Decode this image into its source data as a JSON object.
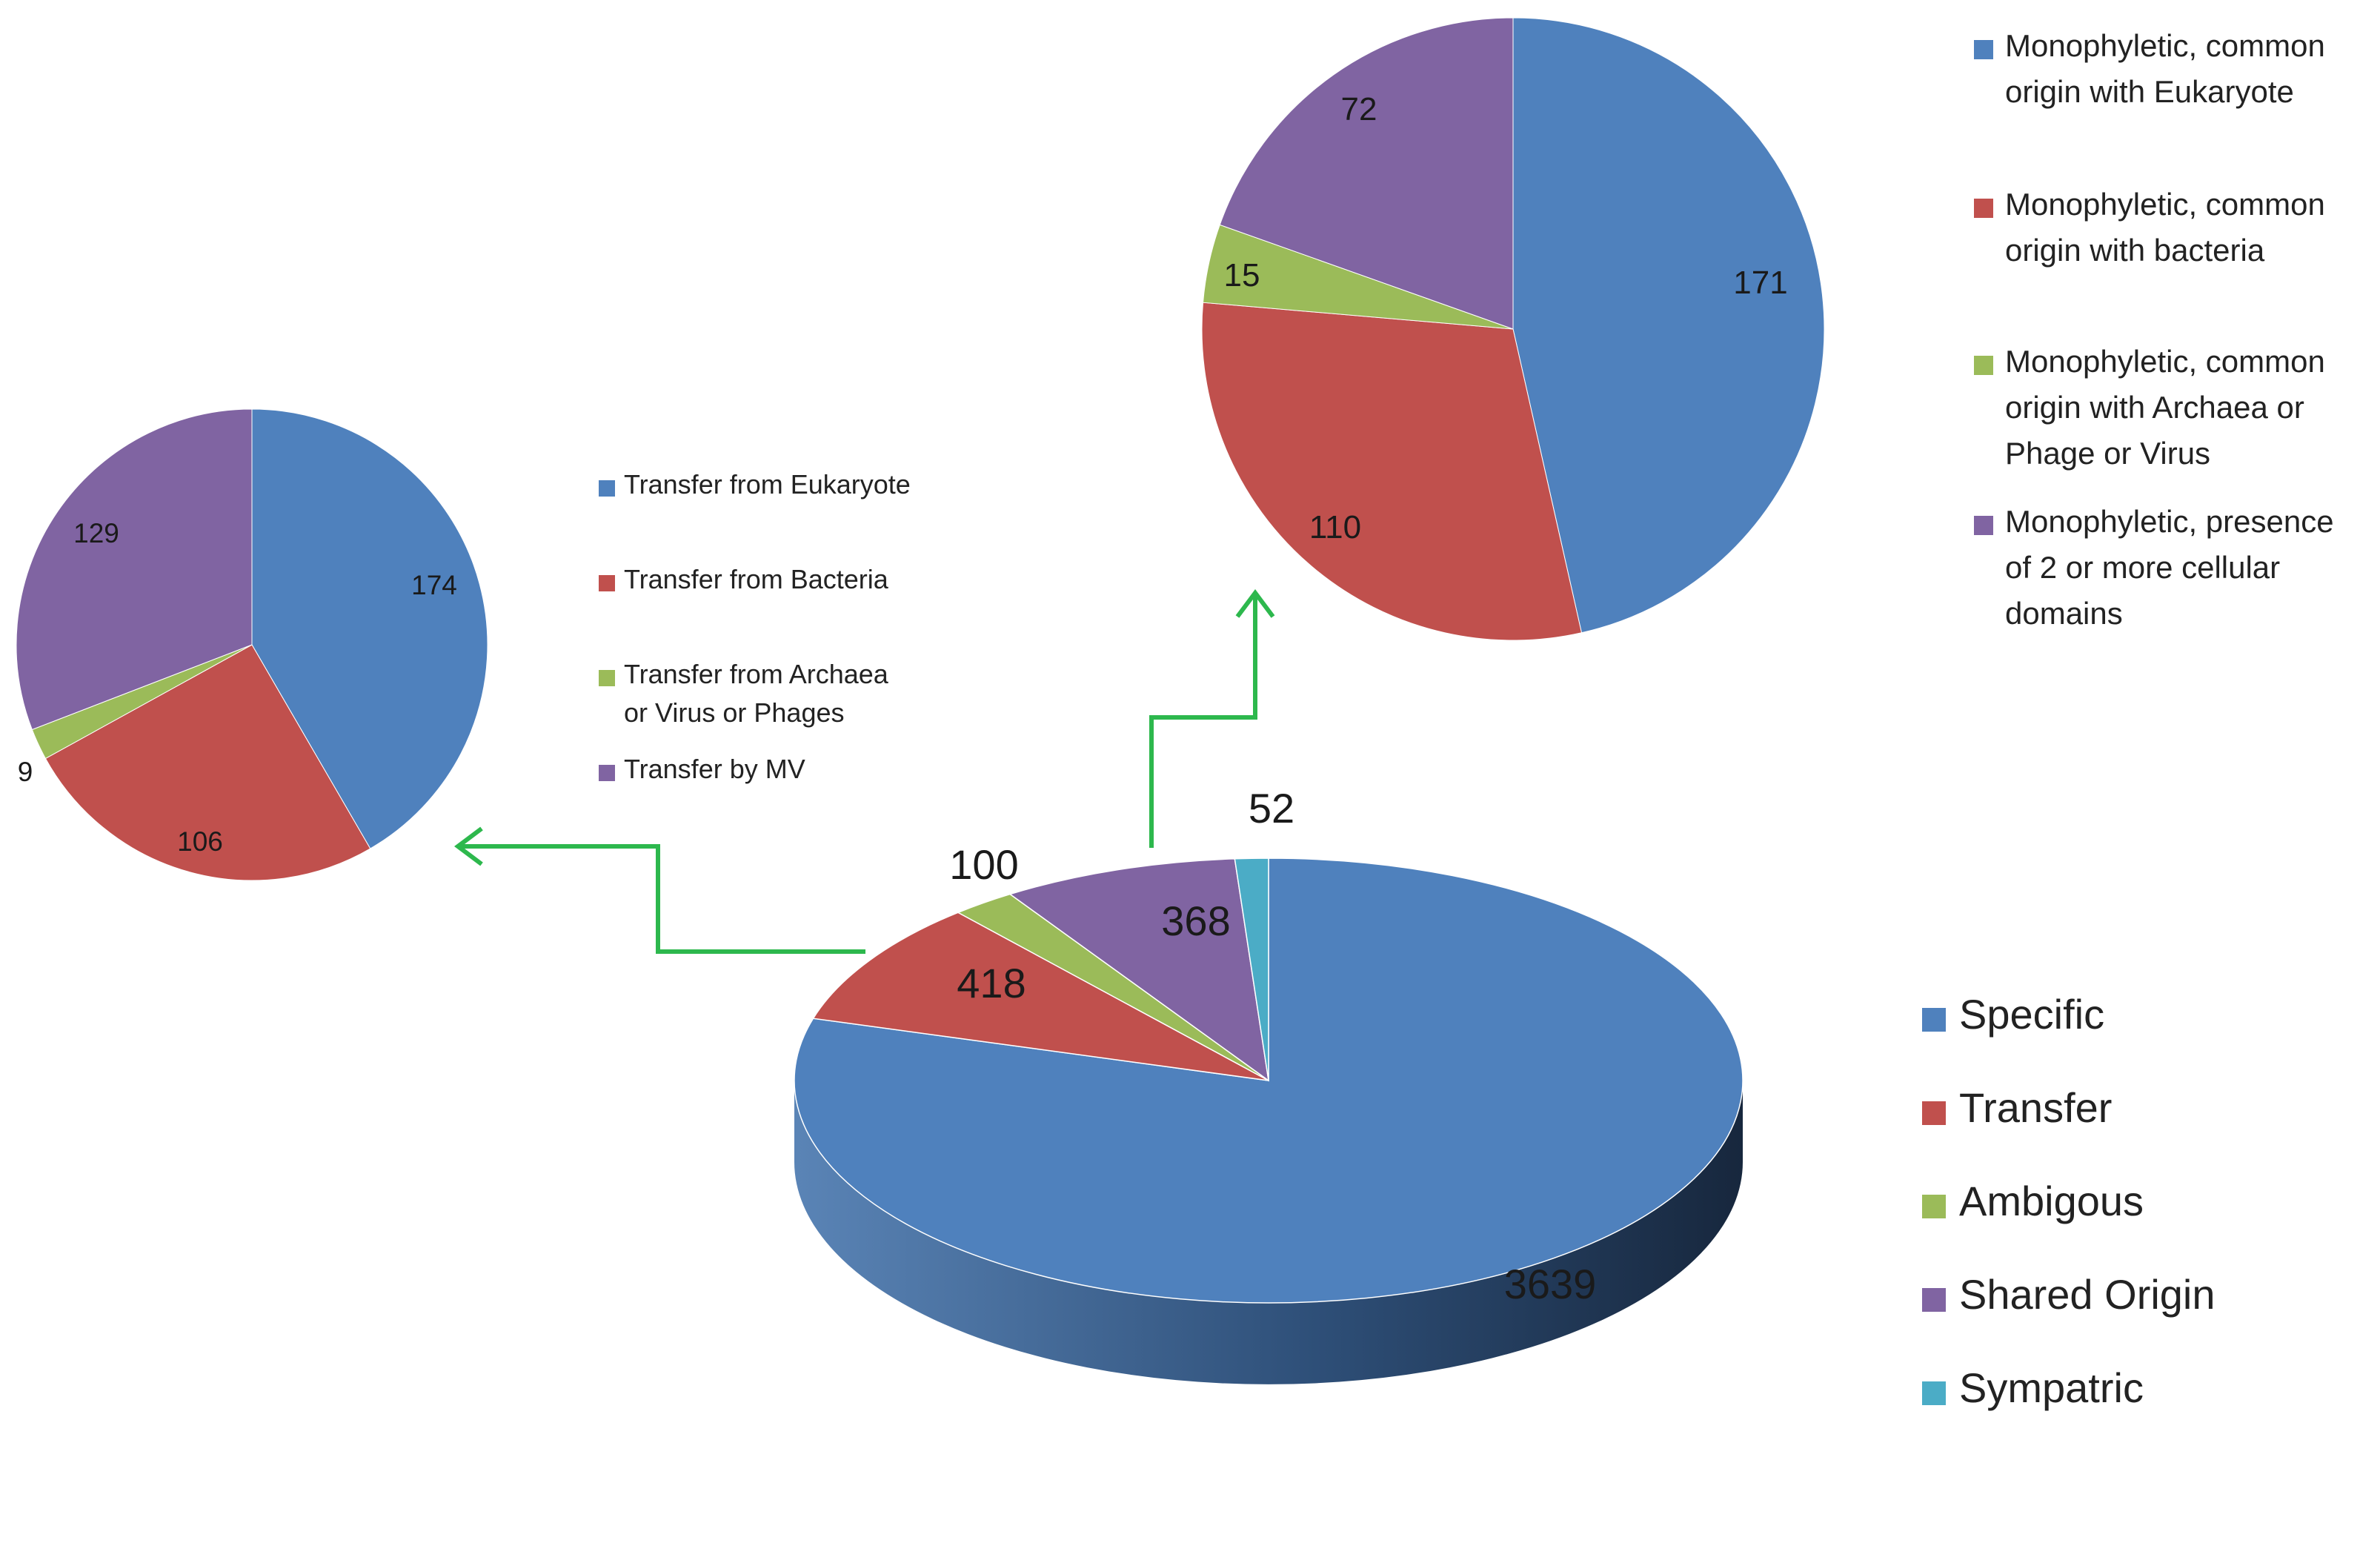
{
  "colors": {
    "blue": "#4F81BD",
    "red": "#C0504D",
    "green": "#9BBB59",
    "purple": "#8064A2",
    "cyan": "#4BACC6",
    "arrow": "#2DB84D"
  },
  "chart_data": [
    {
      "id": "main",
      "type": "pie",
      "style": "3d",
      "categories": [
        "Specific",
        "Transfer",
        "Ambigous",
        "Shared Origin",
        "Sympatric"
      ],
      "values": [
        3639,
        418,
        100,
        368,
        52
      ],
      "value_labels": [
        "3639",
        "418",
        "100",
        "368",
        "52"
      ],
      "legend": [
        "Specific",
        "Transfer",
        "Ambigous",
        "Shared Origin",
        "Sympatric"
      ],
      "legend_position": "right"
    },
    {
      "id": "transfer-breakdown",
      "type": "pie",
      "categories": [
        "Transfer from Eukaryote",
        "Transfer from Bacteria",
        "Transfer from Archaea or Virus or Phages",
        "Transfer by MV"
      ],
      "values": [
        174,
        106,
        9,
        129
      ],
      "value_labels": [
        "174",
        "106",
        "9",
        "129"
      ],
      "legend": [
        [
          "Transfer from Eukaryote"
        ],
        [
          "Transfer from Bacteria"
        ],
        [
          "Transfer from Archaea",
          "or Virus or Phages"
        ],
        [
          "Transfer by MV"
        ]
      ],
      "legend_position": "right"
    },
    {
      "id": "shared-origin-breakdown",
      "type": "pie",
      "categories": [
        "Monophyletic, common origin with Eukaryote",
        "Monophyletic, common origin with bacteria",
        "Monophyletic, common origin with Archaea or Phage or Virus",
        "Monophyletic, presence of 2 or more cellular domains"
      ],
      "values": [
        171,
        110,
        15,
        72
      ],
      "value_labels": [
        "171",
        "110",
        "15",
        "72"
      ],
      "legend": [
        [
          "Monophyletic, common",
          "origin with Eukaryote"
        ],
        [
          "Monophyletic, common",
          "origin with bacteria"
        ],
        [
          "Monophyletic, common",
          "origin with Archaea or",
          "Phage or Virus"
        ],
        [
          "Monophyletic, presence",
          "of 2 or more cellular",
          "domains"
        ]
      ],
      "legend_position": "right"
    }
  ]
}
